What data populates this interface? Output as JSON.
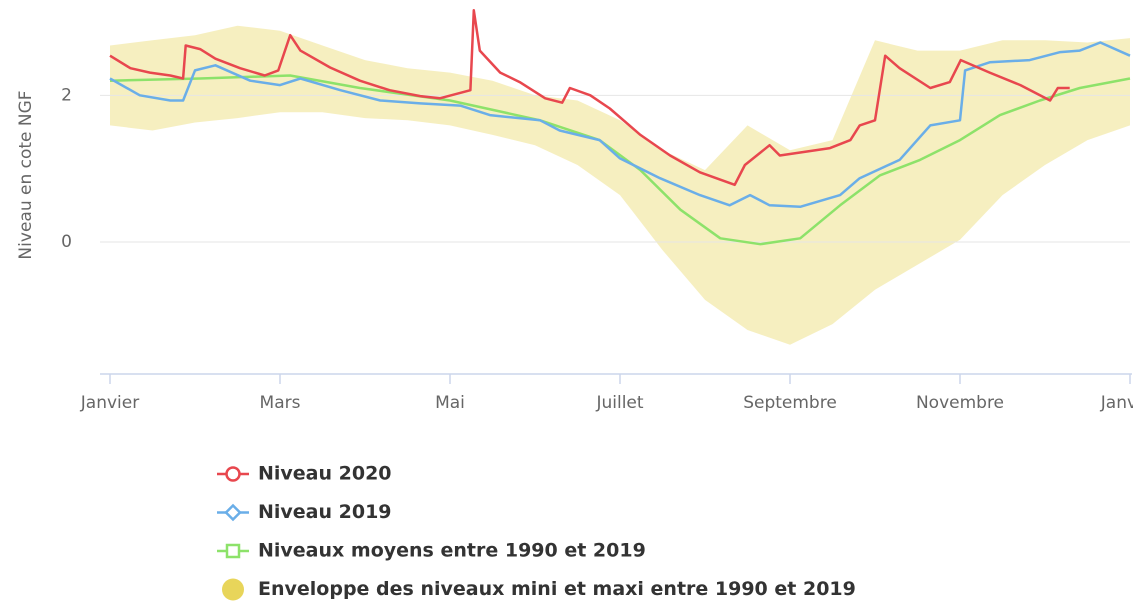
{
  "chart_data": {
    "type": "line",
    "y_axis_label": "Niveau en cote NGF",
    "xlim": [
      0,
      12
    ],
    "xticks": [
      {
        "value": 0,
        "label": "Janvier"
      },
      {
        "value": 2,
        "label": "Mars"
      },
      {
        "value": 4,
        "label": "Mai"
      },
      {
        "value": 6,
        "label": "Juillet"
      },
      {
        "value": 8,
        "label": "Septembre"
      },
      {
        "value": 10,
        "label": "Novembre"
      },
      {
        "value": 12,
        "label": "Janvier"
      }
    ],
    "ylim": [
      -1.8,
      3.3
    ],
    "yticks": [
      0,
      2
    ],
    "grid": true,
    "legend": "bottom",
    "series": [
      {
        "name": "Niveau 2020",
        "color": "#e8474e",
        "marker": "circle",
        "x": [
          0,
          0.24,
          0.47,
          0.71,
          0.86,
          0.89,
          1.06,
          1.24,
          1.53,
          1.82,
          1.98,
          2.12,
          2.24,
          2.59,
          2.94,
          3.29,
          3.65,
          3.88,
          4.24,
          4.28,
          4.35,
          4.59,
          4.82,
          5.12,
          5.32,
          5.41,
          5.65,
          5.88,
          6.24,
          6.59,
          6.94,
          7.35,
          7.47,
          7.76,
          7.88,
          8.12,
          8.47,
          8.71,
          8.82,
          9.0,
          9.12,
          9.29,
          9.65,
          9.88,
          10.01,
          10.35,
          10.71,
          11.06,
          11.15,
          11.29
        ],
        "values": [
          2.54,
          2.37,
          2.31,
          2.27,
          2.23,
          2.68,
          2.63,
          2.5,
          2.37,
          2.27,
          2.34,
          2.82,
          2.61,
          2.38,
          2.2,
          2.07,
          1.99,
          1.96,
          2.07,
          3.16,
          2.61,
          2.31,
          2.18,
          1.96,
          1.9,
          2.1,
          2.0,
          1.82,
          1.46,
          1.18,
          0.95,
          0.78,
          1.05,
          1.32,
          1.18,
          1.22,
          1.28,
          1.39,
          1.59,
          1.66,
          2.54,
          2.37,
          2.1,
          2.18,
          2.48,
          2.31,
          2.14,
          1.93,
          2.1,
          2.1
        ]
      },
      {
        "name": "Niveau 2019",
        "color": "#6aaee8",
        "marker": "diamond",
        "x": [
          0,
          0.35,
          0.71,
          0.86,
          1.0,
          1.24,
          1.65,
          2.0,
          2.24,
          2.71,
          3.18,
          3.65,
          4.12,
          4.47,
          5.06,
          5.29,
          5.76,
          6.0,
          6.47,
          6.94,
          7.29,
          7.53,
          7.76,
          8.12,
          8.59,
          8.82,
          9.29,
          9.65,
          10.0,
          10.06,
          10.35,
          10.82,
          11.18,
          11.41,
          11.65,
          12
        ],
        "values": [
          2.23,
          2.0,
          1.93,
          1.93,
          2.34,
          2.41,
          2.2,
          2.14,
          2.23,
          2.07,
          1.93,
          1.89,
          1.86,
          1.73,
          1.66,
          1.52,
          1.39,
          1.14,
          0.87,
          0.64,
          0.5,
          0.64,
          0.5,
          0.48,
          0.64,
          0.87,
          1.12,
          1.59,
          1.66,
          2.34,
          2.45,
          2.48,
          2.59,
          2.61,
          2.72,
          2.54
        ]
      },
      {
        "name": "Niveaux moyens entre 1990 et 2019",
        "color": "#8de26a",
        "marker": "square",
        "x": [
          0,
          1.06,
          2.12,
          2.94,
          4.0,
          5.06,
          5.76,
          6.24,
          6.71,
          7.18,
          7.65,
          8.12,
          8.59,
          9.06,
          9.53,
          10.0,
          10.47,
          10.94,
          11.41,
          12
        ],
        "values": [
          2.2,
          2.23,
          2.27,
          2.1,
          1.93,
          1.66,
          1.39,
          0.98,
          0.44,
          0.05,
          -0.03,
          0.05,
          0.5,
          0.91,
          1.12,
          1.39,
          1.73,
          1.93,
          2.1,
          2.23
        ]
      },
      {
        "name": "Enveloppe des niveaux mini et maxi entre 1990 et 2019",
        "color": "#e8d55a",
        "marker": "range",
        "x": [
          0,
          0.5,
          1,
          1.5,
          2,
          2.5,
          3,
          3.5,
          4,
          4.5,
          5,
          5.5,
          6,
          6.5,
          7,
          7.5,
          8,
          8.5,
          9,
          9.5,
          10,
          10.5,
          11,
          11.5,
          12
        ],
        "low": [
          1.59,
          1.52,
          1.63,
          1.69,
          1.77,
          1.77,
          1.69,
          1.66,
          1.59,
          1.46,
          1.32,
          1.05,
          0.64,
          -0.11,
          -0.79,
          -1.2,
          -1.4,
          -1.12,
          -0.65,
          -0.31,
          0.03,
          0.64,
          1.05,
          1.39,
          1.59
        ],
        "high": [
          2.68,
          2.75,
          2.82,
          2.95,
          2.88,
          2.68,
          2.48,
          2.37,
          2.31,
          2.2,
          2.0,
          1.93,
          1.66,
          1.25,
          0.98,
          1.59,
          1.25,
          1.39,
          2.75,
          2.61,
          2.61,
          2.75,
          2.75,
          2.72,
          2.78
        ]
      }
    ]
  }
}
